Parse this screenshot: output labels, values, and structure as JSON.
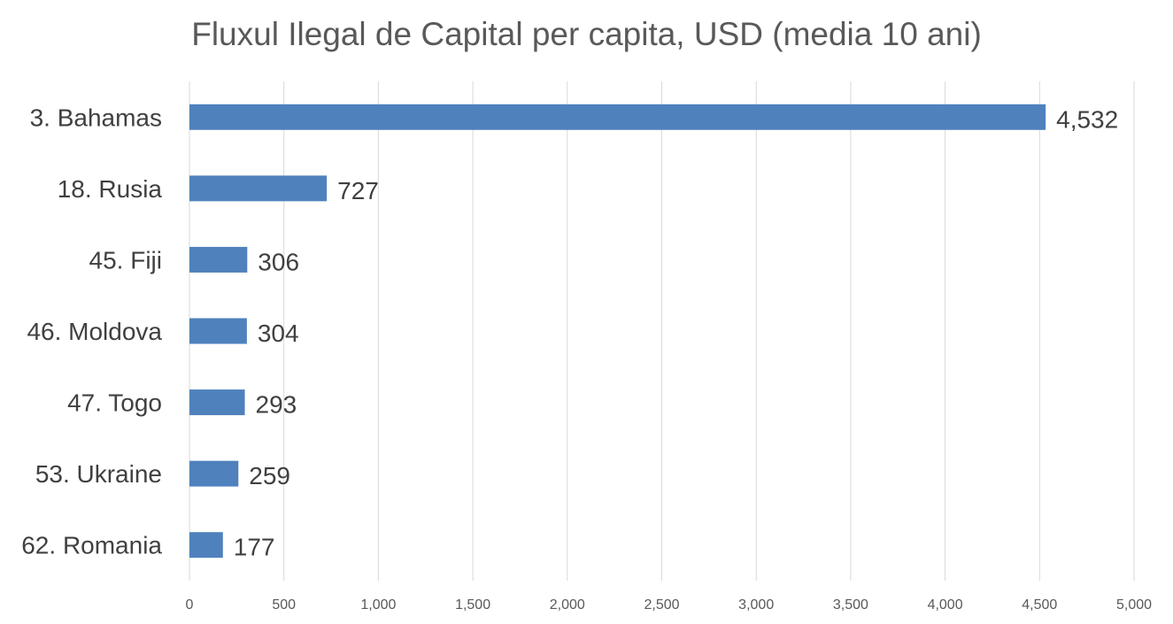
{
  "chart_data": {
    "type": "bar",
    "orientation": "horizontal",
    "title": "Fluxul Ilegal de Capital per capita, USD (media 10 ani)",
    "xlabel": "",
    "ylabel": "",
    "categories": [
      "3. Bahamas",
      "18. Rusia",
      "45. Fiji",
      "46. Moldova",
      "47. Togo",
      "53. Ukraine",
      "62. Romania"
    ],
    "values": [
      4532,
      727,
      306,
      304,
      293,
      259,
      177
    ],
    "data_labels": [
      "4,532",
      "727",
      "306",
      "304",
      "293",
      "259",
      "177"
    ],
    "xlim": [
      0,
      5000
    ],
    "x_ticks": [
      0,
      500,
      1000,
      1500,
      2000,
      2500,
      3000,
      3500,
      4000,
      4500,
      5000
    ],
    "x_tick_labels": [
      "0",
      "500",
      "1,000",
      "1,500",
      "2,000",
      "2,500",
      "3,000",
      "3,500",
      "4,000",
      "4,500",
      "5,000"
    ],
    "grid": "vertical",
    "legend": "none",
    "colors": {
      "bar": "#4f81bd",
      "grid": "#d9d9d9",
      "text": "#404040",
      "tick_text": "#595959",
      "title": "#595959"
    }
  }
}
